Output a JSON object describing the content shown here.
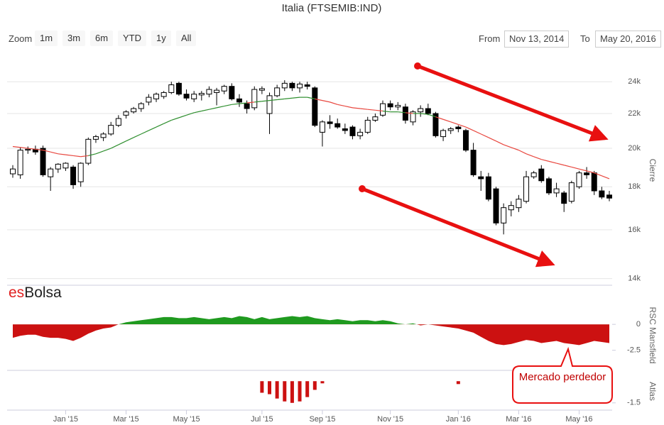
{
  "header": {
    "zoom_label": "Zoom",
    "zoom_buttons": [
      "1m",
      "3m",
      "6m",
      "YTD",
      "1y",
      "All"
    ],
    "from_label": "From",
    "from_date": "Nov 13, 2014",
    "to_label": "To",
    "to_date": "May 20, 2016"
  },
  "brand": {
    "prefix": "es",
    "name": "Bolsa"
  },
  "annotation": "Mercado perdedor",
  "chart_data": [
    {
      "type": "candlestick",
      "title": "Italia (FTSEMIB:IND)",
      "y_label": "Cierre",
      "log_scale": true,
      "grid": true,
      "up_color": "#ffffff",
      "down_color": "#000000",
      "categories": [
        null,
        null,
        null,
        null,
        null,
        null,
        null,
        "Jan '15",
        null,
        null,
        null,
        null,
        null,
        null,
        null,
        "Mar '15",
        null,
        null,
        null,
        null,
        null,
        null,
        null,
        "May '15",
        null,
        null,
        null,
        null,
        null,
        null,
        null,
        null,
        null,
        "Jul '15",
        null,
        null,
        null,
        null,
        null,
        null,
        null,
        "Sep '15",
        null,
        null,
        null,
        null,
        null,
        null,
        null,
        null,
        "Nov '15",
        null,
        null,
        null,
        null,
        null,
        null,
        null,
        null,
        "Jan '16",
        null,
        null,
        null,
        null,
        null,
        null,
        null,
        "Mar '16",
        null,
        null,
        null,
        null,
        null,
        null,
        null,
        "May '16",
        null,
        null,
        null,
        null
      ],
      "open": [
        18650,
        18600,
        19900,
        19950,
        20000,
        18500,
        18900,
        18950,
        19000,
        18250,
        19200,
        20500,
        20600,
        20800,
        21300,
        21900,
        22100,
        22300,
        22700,
        22900,
        23050,
        23300,
        23900,
        23200,
        22900,
        23150,
        23200,
        23300,
        23400,
        23700,
        22900,
        22600,
        22350,
        23450,
        22000,
        23100,
        23600,
        23900,
        23600,
        23800,
        23600,
        20900,
        21500,
        21400,
        21100,
        21200,
        20700,
        20900,
        21600,
        21900,
        22600,
        22400,
        22400,
        21500,
        22100,
        22300,
        22000,
        20650,
        21000,
        21200,
        21000,
        19900,
        18500,
        18500,
        17900,
        16300,
        16900,
        17000,
        17300,
        18500,
        18900,
        18400,
        17700,
        17700,
        17300,
        18000,
        18700,
        18700,
        17800,
        17600
      ],
      "high": [
        19100,
        20050,
        20100,
        20150,
        20150,
        19000,
        19200,
        19250,
        19100,
        19250,
        20600,
        20750,
        20900,
        21500,
        21900,
        22200,
        22400,
        22700,
        23200,
        23300,
        23400,
        24000,
        24000,
        23500,
        23400,
        23400,
        23700,
        23600,
        23800,
        23900,
        23200,
        22800,
        23700,
        23700,
        23300,
        23800,
        24100,
        24000,
        24000,
        24000,
        23700,
        21600,
        21900,
        21700,
        21400,
        21300,
        21100,
        21800,
        22000,
        22800,
        22800,
        22700,
        22600,
        22200,
        22500,
        22600,
        22100,
        21100,
        21200,
        21300,
        21100,
        20300,
        18800,
        18700,
        18000,
        17200,
        17300,
        17600,
        18800,
        18800,
        19100,
        18500,
        18200,
        17800,
        18300,
        18800,
        19000,
        18800,
        18000,
        17800
      ],
      "low": [
        18450,
        18400,
        19700,
        19650,
        18500,
        17800,
        18700,
        18800,
        17900,
        18000,
        19100,
        20300,
        20400,
        20700,
        21200,
        21700,
        22000,
        22100,
        22500,
        22700,
        22900,
        23200,
        23100,
        22800,
        22700,
        22800,
        23000,
        22500,
        23200,
        22800,
        22400,
        22000,
        22200,
        23200,
        20800,
        23000,
        23400,
        23400,
        23300,
        23500,
        21200,
        20100,
        21100,
        21100,
        20800,
        20500,
        20500,
        20800,
        21500,
        21800,
        22200,
        22200,
        21400,
        21300,
        21800,
        21900,
        20600,
        20400,
        20800,
        20900,
        19800,
        18500,
        17800,
        17300,
        16200,
        15800,
        16600,
        16800,
        17200,
        18400,
        18200,
        17600,
        17500,
        16800,
        17200,
        17900,
        18400,
        17600,
        17400,
        17300
      ],
      "close": [
        18900,
        19900,
        19950,
        19800,
        18600,
        18900,
        19150,
        19200,
        18100,
        19200,
        20500,
        20650,
        20800,
        21300,
        21700,
        22100,
        22300,
        22600,
        23000,
        23200,
        23300,
        23800,
        23200,
        22950,
        23200,
        23250,
        23500,
        23450,
        23700,
        22900,
        22700,
        22300,
        23500,
        23550,
        23100,
        23600,
        23900,
        23600,
        23850,
        23700,
        21300,
        21500,
        21400,
        21200,
        21000,
        20700,
        20900,
        21600,
        21800,
        22600,
        22400,
        22500,
        21600,
        22100,
        22300,
        22000,
        20700,
        21000,
        21100,
        21100,
        19900,
        18600,
        18400,
        17400,
        16300,
        17000,
        17100,
        17400,
        18500,
        18700,
        18300,
        17700,
        17900,
        17200,
        18200,
        18700,
        18600,
        17800,
        17500,
        17450
      ],
      "moving_average": {
        "below_price_color": "#2f8f2f",
        "above_price_color": "#e8473f",
        "values": [
          20100,
          20050,
          20000,
          19950,
          19900,
          19800,
          19700,
          19650,
          19600,
          19550,
          19600,
          19700,
          19850,
          20000,
          20200,
          20400,
          20600,
          20800,
          21000,
          21200,
          21400,
          21600,
          21750,
          21900,
          22050,
          22150,
          22250,
          22350,
          22450,
          22550,
          22600,
          22650,
          22700,
          22750,
          22800,
          22850,
          22900,
          22950,
          23000,
          23000,
          22900,
          22800,
          22700,
          22550,
          22450,
          22350,
          22300,
          22250,
          22200,
          22150,
          22100,
          22100,
          22050,
          22000,
          22000,
          21950,
          21800,
          21650,
          21500,
          21350,
          21200,
          21000,
          20800,
          20600,
          20400,
          20200,
          20050,
          19900,
          19700,
          19550,
          19400,
          19300,
          19200,
          19100,
          19000,
          18900,
          18800,
          18700,
          18550,
          18400
        ]
      },
      "ylim": [
        13800,
        25700
      ],
      "yticks": [
        {
          "value": 14000,
          "label": "14k"
        },
        {
          "value": 16000,
          "label": "16k"
        },
        {
          "value": 18000,
          "label": "18k"
        },
        {
          "value": 20000,
          "label": "20k"
        },
        {
          "value": 22000,
          "label": "22k"
        },
        {
          "value": 24000,
          "label": "24k"
        }
      ]
    },
    {
      "type": "area",
      "y_label": "RSC Mansfield",
      "positive_color": "#1f9a1f",
      "negative_color": "#cc1111",
      "values": [
        -1.3,
        -1.1,
        -1.0,
        -1.0,
        -1.2,
        -1.3,
        -1.3,
        -1.4,
        -1.6,
        -1.3,
        -0.9,
        -0.6,
        -0.4,
        -0.3,
        0,
        0.2,
        0.3,
        0.4,
        0.5,
        0.6,
        0.7,
        0.7,
        0.6,
        0.6,
        0.7,
        0.6,
        0.5,
        0.6,
        0.7,
        0.6,
        0.8,
        0.7,
        0.5,
        0.7,
        0.5,
        0.6,
        0.7,
        0.8,
        0.7,
        0.8,
        0.6,
        0.5,
        0.4,
        0.5,
        0.4,
        0.3,
        0.4,
        0.4,
        0.3,
        0.4,
        0.3,
        0.1,
        0,
        0.1,
        -0.1,
        0,
        -0.1,
        -0.2,
        -0.3,
        -0.4,
        -0.6,
        -0.8,
        -1.2,
        -1.6,
        -1.9,
        -2.0,
        -1.9,
        -1.7,
        -1.5,
        -1.6,
        -1.8,
        -1.7,
        -1.6,
        -1.8,
        -1.9,
        -2.0,
        -1.8,
        -1.6,
        -1.7,
        -1.8
      ],
      "ylim": [
        -4.3,
        2.2
      ],
      "yticks": [
        0,
        -2.5
      ]
    },
    {
      "type": "bar",
      "y_label": "Atlas",
      "color": "#cc1111",
      "values": [
        null,
        null,
        null,
        null,
        null,
        null,
        null,
        null,
        null,
        null,
        null,
        null,
        null,
        null,
        null,
        null,
        null,
        null,
        null,
        null,
        null,
        null,
        null,
        null,
        null,
        null,
        null,
        null,
        null,
        null,
        null,
        null,
        null,
        -0.8,
        -0.9,
        -1.2,
        -1.4,
        -1.5,
        -1.4,
        -1.1,
        -0.6,
        -0.15,
        null,
        null,
        null,
        null,
        null,
        null,
        null,
        null,
        null,
        null,
        null,
        null,
        null,
        null,
        null,
        null,
        null,
        -0.2,
        null,
        null,
        null,
        null,
        null,
        null,
        null,
        null,
        null,
        null,
        null,
        null,
        null,
        null,
        null,
        null,
        null,
        null,
        null,
        null
      ],
      "ylim": [
        -2,
        0.6
      ],
      "yticks": [
        -1.5
      ]
    }
  ]
}
